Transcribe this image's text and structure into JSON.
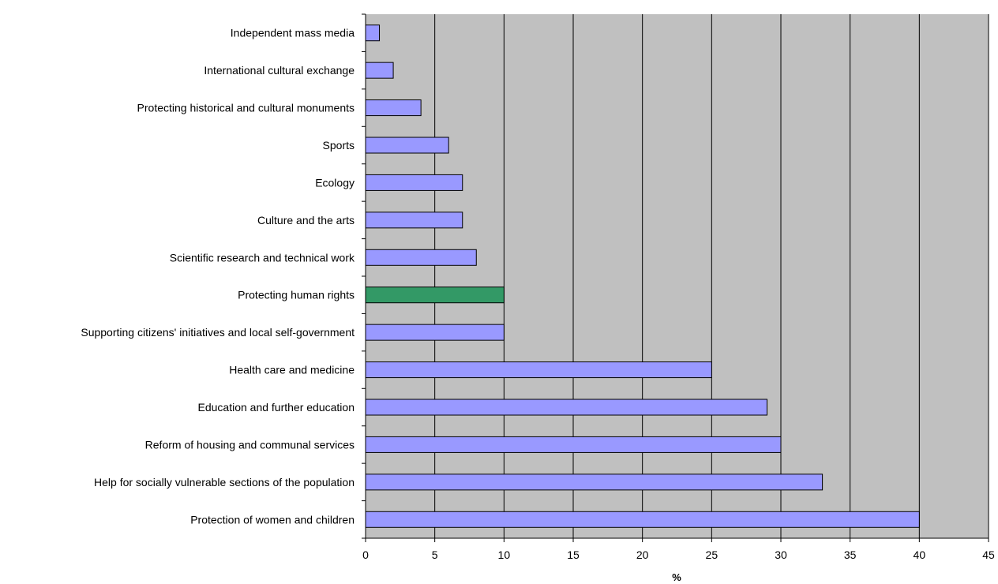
{
  "chart_data": {
    "type": "bar",
    "orientation": "horizontal",
    "categories": [
      "Independent mass media",
      "International cultural exchange",
      "Protecting historical and cultural monuments",
      "Sports",
      "Ecology",
      "Culture and the arts",
      "Scientific research and technical work",
      "Protecting human rights",
      "Supporting citizens' initiatives and local self-government",
      "Health care and medicine",
      "Education and further education",
      "Reform of housing and communal services",
      "Help for socially vulnerable sections of the population",
      "Protection of women and children"
    ],
    "values": [
      1,
      2,
      4,
      6,
      7,
      7,
      8,
      10,
      10,
      25,
      29,
      30,
      33,
      40
    ],
    "highlight_index": 7,
    "xlabel": "%",
    "ylabel": "",
    "title": "",
    "xlim": [
      0,
      45
    ],
    "xticks": [
      0,
      5,
      10,
      15,
      20,
      25,
      30,
      35,
      40,
      45
    ],
    "grid": "vertical",
    "legend": "none",
    "colors": {
      "bar": "#9999ff",
      "highlight": "#339966",
      "plot_background": "#c0c0c0",
      "border": "#000000"
    }
  }
}
